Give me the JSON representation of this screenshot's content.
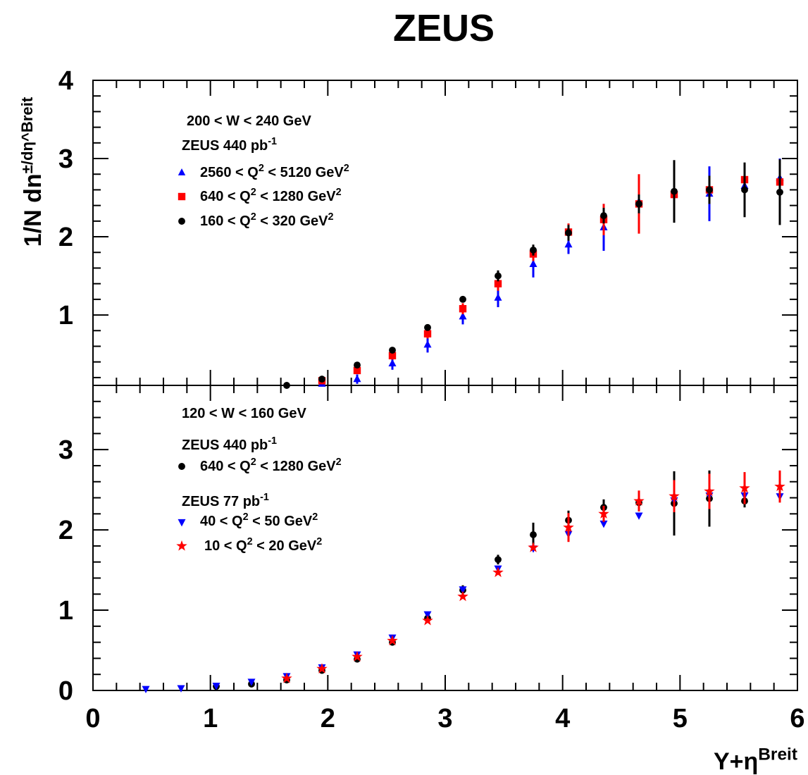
{
  "chart_data": [
    {
      "type": "scatter",
      "title": "ZEUS",
      "xlabel": "Y+η^Breit",
      "ylabel": "1/N dn^±/dη^Breit",
      "xlim": [
        0,
        6
      ],
      "ylim": [
        0.1,
        4
      ],
      "yticks": [
        1,
        2,
        3,
        4
      ],
      "legend_position": "top-left",
      "annotations": [
        "200 < W < 240 GeV",
        "ZEUS 440 pb^-1"
      ],
      "x": [
        0.45,
        0.75,
        1.05,
        1.35,
        1.65,
        1.95,
        2.25,
        2.55,
        2.85,
        3.15,
        3.45,
        3.75,
        4.05,
        4.35,
        4.65,
        4.95,
        5.25,
        5.55,
        5.85
      ],
      "series": [
        {
          "name": "2560 < Q^2 < 5120 GeV^2",
          "marker": "triangle-up",
          "color": "#0000ff",
          "values": [
            null,
            null,
            null,
            null,
            null,
            0.12,
            0.18,
            0.38,
            0.62,
            0.98,
            1.22,
            1.65,
            1.9,
            2.12,
            2.45,
            2.55,
            2.55,
            2.65,
            2.75
          ],
          "errors": [
            0,
            0,
            0,
            0,
            0,
            0.04,
            0.06,
            0.08,
            0.1,
            0.1,
            0.12,
            0.17,
            0.12,
            0.3,
            0.3,
            0.2,
            0.35,
            0.22,
            0.25
          ]
        },
        {
          "name": "640 < Q^2 < 1280 GeV^2",
          "marker": "square",
          "color": "#ff0000",
          "values": [
            null,
            null,
            null,
            null,
            null,
            0.16,
            0.29,
            0.48,
            0.76,
            1.08,
            1.4,
            1.78,
            2.06,
            2.22,
            2.42,
            2.54,
            2.6,
            2.73,
            2.7
          ],
          "errors": [
            0,
            0,
            0,
            0,
            0,
            0.03,
            0.04,
            0.05,
            0.06,
            0.07,
            0.09,
            0.09,
            0.11,
            0.2,
            0.38,
            0.2,
            0.15,
            0.15,
            0.2
          ]
        },
        {
          "name": "160 < Q^2 < 320 GeV^2",
          "marker": "circle",
          "color": "#000000",
          "values": [
            null,
            null,
            null,
            null,
            0.1,
            0.18,
            0.36,
            0.55,
            0.84,
            1.2,
            1.5,
            1.83,
            2.05,
            2.27,
            2.42,
            2.58,
            2.6,
            2.6,
            2.57
          ],
          "errors": [
            0,
            0,
            0,
            0,
            0,
            0.02,
            0.03,
            0.03,
            0.04,
            0.04,
            0.07,
            0.07,
            0.1,
            0.1,
            0.12,
            0.4,
            0.18,
            0.35,
            0.42
          ]
        }
      ]
    },
    {
      "type": "scatter",
      "xlabel": "Y+η^Breit",
      "ylabel": "",
      "xlim": [
        0,
        6
      ],
      "ylim": [
        0,
        3.8
      ],
      "yticks": [
        0,
        1,
        2,
        3
      ],
      "xticks": [
        0,
        1,
        2,
        3,
        4,
        5,
        6
      ],
      "legend_position": "top-left",
      "annotations": [
        "120 < W < 160 GeV",
        "ZEUS 440 pb^-1",
        "ZEUS 77 pb^-1"
      ],
      "x": [
        0.45,
        0.75,
        1.05,
        1.35,
        1.65,
        1.95,
        2.25,
        2.55,
        2.85,
        3.15,
        3.45,
        3.75,
        4.05,
        4.35,
        4.65,
        4.95,
        5.25,
        5.55,
        5.85
      ],
      "series": [
        {
          "name": "640 < Q^2 < 1280 GeV^2",
          "group": "ZEUS 440 pb^-1",
          "marker": "circle",
          "color": "#000000",
          "values": [
            null,
            null,
            0.05,
            0.08,
            0.13,
            0.25,
            0.39,
            0.6,
            0.9,
            1.25,
            1.63,
            1.94,
            2.12,
            2.28,
            2.34,
            2.33,
            2.39,
            2.36,
            null
          ],
          "errors": [
            0,
            0,
            0.01,
            0.01,
            0.02,
            0.03,
            0.04,
            0.04,
            0.05,
            0.06,
            0.06,
            0.15,
            0.12,
            0.1,
            0.1,
            0.4,
            0.35,
            0.08,
            0
          ]
        },
        {
          "name": "40 < Q^2 < 50 GeV^2",
          "group": "ZEUS 77 pb^-1",
          "marker": "triangle-down",
          "color": "#0000ff",
          "values": [
            0.02,
            0.03,
            0.06,
            0.11,
            0.18,
            0.29,
            0.45,
            0.66,
            0.95,
            1.26,
            1.52,
            1.77,
            1.95,
            2.08,
            2.18,
            2.37,
            2.43,
            2.43,
            2.42
          ],
          "errors": [
            0,
            0,
            0,
            0,
            0,
            0,
            0,
            0,
            0,
            0,
            0,
            0,
            0,
            0,
            0,
            0,
            0,
            0,
            0
          ]
        },
        {
          "name": "10 < Q^2 < 20 GeV^2",
          "group": "ZEUS 77 pb^-1",
          "marker": "star",
          "color": "#ff0000",
          "values": [
            null,
            null,
            null,
            null,
            0.15,
            0.27,
            0.42,
            0.62,
            0.87,
            1.17,
            1.47,
            1.78,
            2.03,
            2.2,
            2.36,
            2.42,
            2.48,
            2.52,
            2.54
          ],
          "errors": [
            0,
            0,
            0,
            0,
            0,
            0,
            0,
            0,
            0,
            0,
            0,
            0,
            0.18,
            0.1,
            0.13,
            0.2,
            0.22,
            0.2,
            0.2
          ]
        }
      ]
    }
  ]
}
